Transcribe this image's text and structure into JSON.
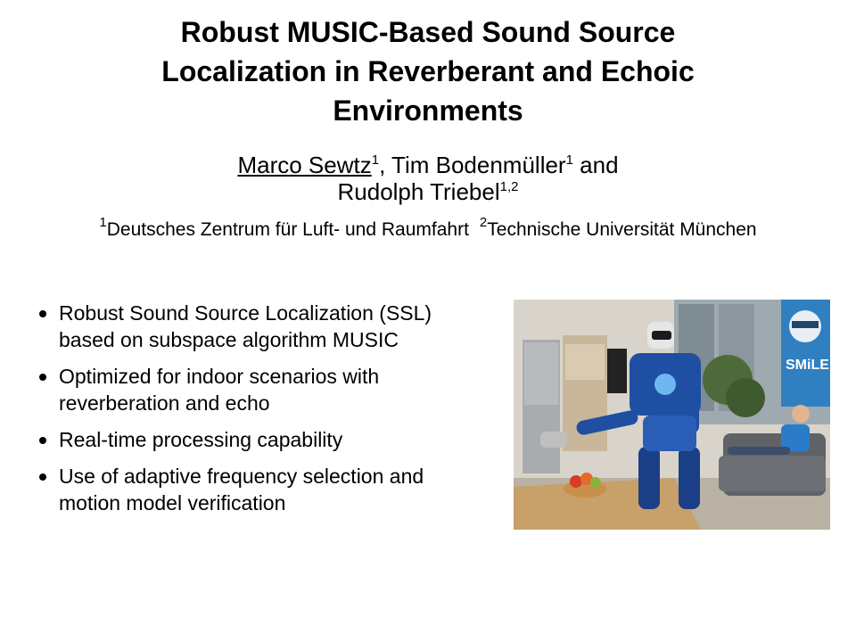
{
  "title": {
    "line1": "Robust MUSIC-Based Sound Source",
    "line2": "Localization in Reverberant and Echoic",
    "line3": "Environments"
  },
  "authors": {
    "a1_name": "Marco Sewtz",
    "a1_sup": "1",
    "a2_name": ", Tim Bodenmüller",
    "a2_sup": "1",
    "and": " and",
    "a3_name": "Rudolph Triebel",
    "a3_sup": "1,2"
  },
  "affiliations": [
    {
      "sup": "1",
      "name": "Deutsches Zentrum für Luft- und Raumfahrt"
    },
    {
      "sup": "2",
      "name": "Technische Universität München"
    }
  ],
  "bullets": [
    {
      "line1": "Robust Sound Source Localization (SSL)",
      "line2": "based on subspace algorithm MUSIC"
    },
    {
      "line1": "Optimized for indoor scenarios with",
      "line2": "reverberation and echo"
    },
    {
      "line1": "Real-time processing capability",
      "line2": ""
    },
    {
      "line1": "Use of adaptive frequency selection and",
      "line2": "motion model verification"
    }
  ],
  "photo": {
    "poster_text": "SMiLE",
    "poster_color": "#2f7fc1",
    "robot_color": "#1f4fa3"
  }
}
